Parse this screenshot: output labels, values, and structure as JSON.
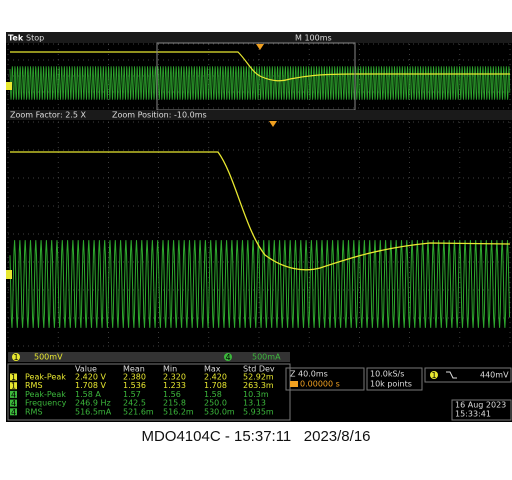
{
  "header": {
    "brand": "Tek",
    "status": "Stop",
    "timebase": "M 100ms"
  },
  "zoom": {
    "factor": "Zoom Factor: 2.5 X",
    "position": "Zoom Position: -10.0ms"
  },
  "channels": [
    {
      "id": "1",
      "scale": "500mV"
    },
    {
      "id": "4",
      "scale": "500mA"
    }
  ],
  "measurements": {
    "columns": [
      "Value",
      "Mean",
      "Min",
      "Max",
      "Std Dev"
    ],
    "rows": [
      {
        "channel": "1",
        "name": "Peak-Peak",
        "cells": [
          "2.420 V",
          "2.380",
          "2.320",
          "2.420",
          "52.92m"
        ]
      },
      {
        "channel": "1",
        "name": "RMS",
        "cells": [
          "1.708 V",
          "1.536",
          "1.233",
          "1.708",
          "263.3m"
        ]
      },
      {
        "channel": "4",
        "name": "Peak-Peak",
        "cells": [
          "1.58 A",
          "1.57",
          "1.56",
          "1.58",
          "10.3m"
        ]
      },
      {
        "channel": "4",
        "name": "Frequency",
        "cells": [
          "246.9 Hz",
          "242.5",
          "215.8",
          "250.0",
          "13.13"
        ]
      },
      {
        "channel": "4",
        "name": "RMS",
        "cells": [
          "516.5mA",
          "521.6m",
          "516.2m",
          "530.0m",
          "5.935m"
        ]
      }
    ]
  },
  "status_boxes": {
    "zoom_scale": "Z 40.0ms",
    "position": "0.00000 s",
    "sample_rate": "10.0kS/s",
    "record_length": "10k points",
    "trigger_channel": "1",
    "trigger_level": "440mV",
    "date": "16 Aug 2023",
    "time": "15:33:41"
  },
  "caption": "MDO4104C - 15:37:11   2023/8/16"
}
